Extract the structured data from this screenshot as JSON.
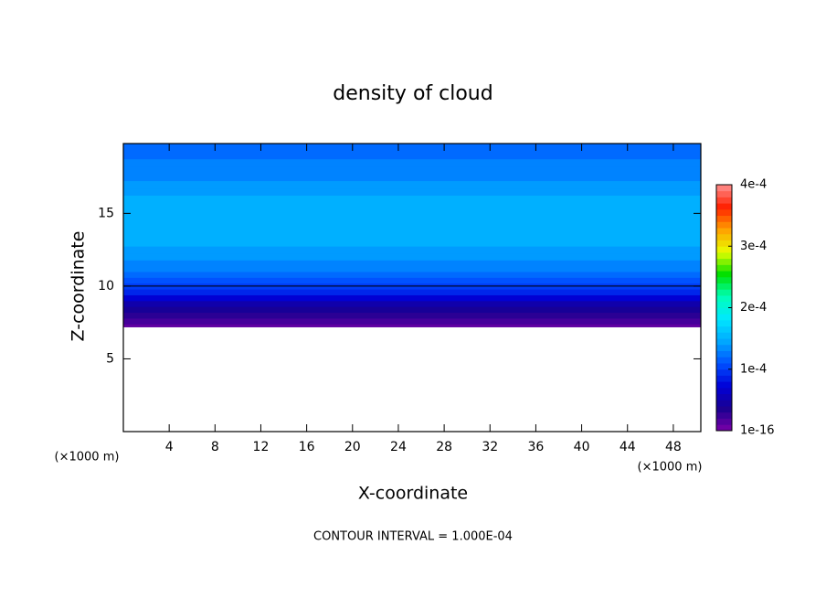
{
  "chart_data": {
    "type": "contour",
    "title": "density of cloud",
    "x_label": "X-coordinate",
    "y_label": "Z-coordinate",
    "x_unit": "(×1000 m)",
    "annotation": "CONTOUR INTERVAL = 1.000E-04",
    "xlim": [
      0,
      50.4
    ],
    "ylim": [
      0,
      19.8
    ],
    "xticks": [
      4,
      8,
      12,
      16,
      20,
      24,
      28,
      32,
      36,
      40,
      44,
      48
    ],
    "yticks": [
      5,
      10,
      15
    ],
    "z": [
      7.2,
      7.6,
      8.0,
      8.4,
      8.8,
      9.2,
      9.6,
      10.0,
      10.4,
      10.8,
      11.2,
      11.6,
      12.0,
      12.5,
      13.0,
      14,
      15,
      16,
      16.5,
      17,
      17.5,
      18,
      18.5,
      19,
      19.8
    ],
    "values": [
      1e-05,
      2e-05,
      3e-05,
      4e-05,
      5e-05,
      7e-05,
      9e-05,
      0.0001,
      0.00011,
      0.00012,
      0.00013,
      0.00013,
      0.00014,
      0.00014,
      0.00015,
      0.00015,
      0.00015,
      0.00015,
      0.00014,
      0.00014,
      0.00013,
      0.00013,
      0.00013,
      0.00012,
      0.00012
    ],
    "contour_levels": [
      0.0001
    ],
    "contour_color": "#000000",
    "clim": [
      1e-16,
      0.0004
    ],
    "cticks": [
      1e-16,
      {
        "value": 0.0001,
        "label": "1e-4"
      },
      {
        "value": 0.0002,
        "label": "2e-4"
      },
      {
        "value": 0.0003,
        "label": "3e-4"
      },
      {
        "value": 0.0004,
        "label": "4e-4"
      }
    ],
    "colormap": [
      "#7a00a8",
      "#1a0090",
      "#0000d8",
      "#0050ff",
      "#00a8ff",
      "#00e8ff",
      "#00ffb8",
      "#00e000",
      "#e8ff00",
      "#ffa000",
      "#ff2000",
      "#ff9090"
    ]
  }
}
